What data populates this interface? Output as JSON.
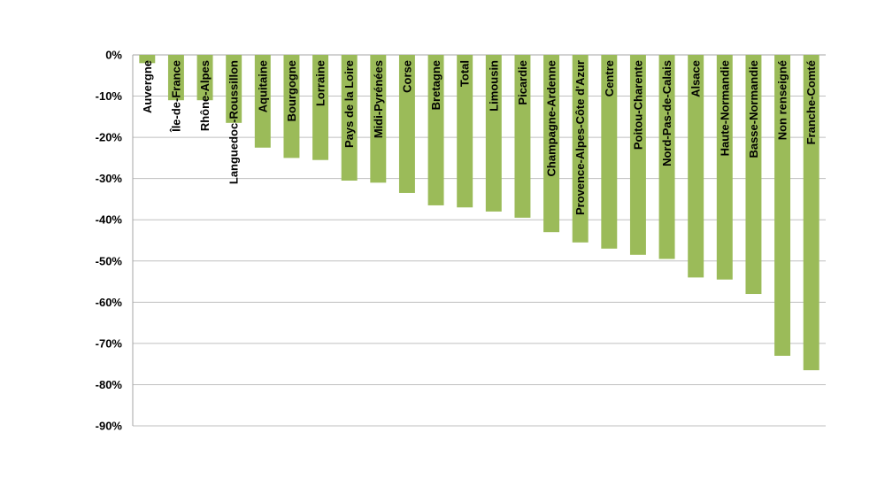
{
  "chart_data": {
    "type": "bar",
    "title": "",
    "xlabel": "",
    "ylabel": "",
    "ylim": [
      -90,
      0
    ],
    "yticks": [
      0,
      -10,
      -20,
      -30,
      -40,
      -50,
      -60,
      -70,
      -80,
      -90
    ],
    "ytick_labels": [
      "0%",
      "-10%",
      "-20%",
      "-30%",
      "-40%",
      "-50%",
      "-60%",
      "-70%",
      "-80%",
      "-90%"
    ],
    "grid": true,
    "bar_color": "#9bbb59",
    "categories": [
      "Auvergne",
      "Île-de-France",
      "Rhône-Alpes",
      "Languedoc-Roussillon",
      "Aquitaine",
      "Bourgogne",
      "Lorraine",
      "Pays de la Loire",
      "Midi-Pyrénées",
      "Corse",
      "Bretagne",
      "Total",
      "Limousin",
      "Picardie",
      "Champagne-Ardenne",
      "Provence-Alpes-Côte d'Azur",
      "Centre",
      "Poitou-Charente",
      "Nord-Pas-de-Calais",
      "Alsace",
      "Haute-Normandie",
      "Basse-Normandie",
      "Non renseigné",
      "Franche-Comté"
    ],
    "values": [
      -2,
      -11,
      -11,
      -16.5,
      -22.5,
      -25,
      -25.5,
      -30.5,
      -31,
      -33.5,
      -36.5,
      -37,
      -38,
      -39.5,
      -43,
      -45.5,
      -47,
      -48.5,
      -49.5,
      -54,
      -54.5,
      -58,
      -73,
      -76.5
    ]
  }
}
